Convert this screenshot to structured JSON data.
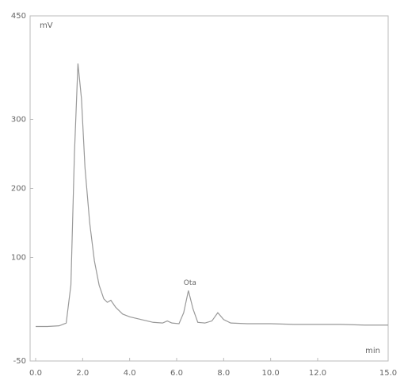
{
  "chart_data": {
    "type": "line",
    "y_label": "mV",
    "x_label": "min",
    "x": [
      0,
      0.5,
      1.0,
      1.3,
      1.5,
      1.65,
      1.8,
      1.95,
      2.1,
      2.3,
      2.5,
      2.7,
      2.9,
      3.05,
      3.2,
      3.4,
      3.7,
      4.0,
      4.5,
      5.0,
      5.4,
      5.6,
      5.8,
      6.1,
      6.3,
      6.5,
      6.7,
      6.9,
      7.2,
      7.5,
      7.75,
      8.0,
      8.3,
      9,
      10,
      11,
      12,
      13,
      14,
      15
    ],
    "series": [
      {
        "color": "#999999",
        "values": [
          0,
          0,
          1,
          5,
          60,
          250,
          381,
          330,
          230,
          150,
          95,
          60,
          40,
          35,
          38,
          28,
          18,
          14,
          10,
          6,
          5,
          8,
          5,
          4,
          20,
          52,
          25,
          6,
          5,
          8,
          20,
          10,
          5,
          4,
          4,
          3,
          3,
          3,
          2,
          2
        ]
      }
    ],
    "annotations": [
      {
        "text": "Ota",
        "x": 6.5,
        "y": 52
      }
    ],
    "xlim": [
      0,
      15
    ],
    "xticks": [
      {
        "value": 0,
        "label": "0.0"
      },
      {
        "value": 2,
        "label": "2.0"
      },
      {
        "value": 4,
        "label": "4.0"
      },
      {
        "value": 6,
        "label": "6.0"
      },
      {
        "value": 8,
        "label": "8.0"
      },
      {
        "value": 10,
        "label": "10.0"
      },
      {
        "value": 12,
        "label": "12.0"
      },
      {
        "value": 15,
        "label": "15.0"
      }
    ],
    "ylim": [
      -50,
      450
    ],
    "yticks": [
      -50,
      100,
      200,
      300,
      450
    ],
    "grid": false
  }
}
